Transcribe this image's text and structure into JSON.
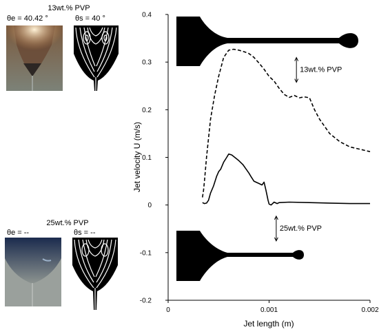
{
  "panels": {
    "top": {
      "title": "13wt.% PVP",
      "exp_angle": "θe = 40.42 °",
      "sim_angle": "θs = 40 °",
      "colors": {
        "photo_top": "#7b5a3e",
        "photo_glow": "#fff3d8",
        "photo_bottom": "#7c8278"
      }
    },
    "bottom": {
      "title": "25wt.% PVP",
      "exp_angle": "θe = --",
      "sim_angle": "θs = --",
      "colors": {
        "photo_top": "#1b2b4d",
        "photo_bottom": "#8d9490"
      }
    }
  },
  "chart_data": {
    "type": "line",
    "xlabel": "Jet length (m)",
    "ylabel": "Jet velocity U (m/s)",
    "xlim": [
      0,
      0.002
    ],
    "ylim": [
      -0.2,
      0.4
    ],
    "xticks": [
      0,
      0.001,
      0.002
    ],
    "xtick_labels": [
      "0",
      "0.001",
      "0.002"
    ],
    "yticks": [
      -0.2,
      -0.1,
      0,
      0.1,
      0.2,
      0.3,
      0.4
    ],
    "ytick_labels": [
      "-0.2",
      "-0.1",
      "0",
      "0.1",
      "0.2",
      "0.3",
      "0.4"
    ],
    "series": [
      {
        "name": "13wt.% PVP",
        "style": "dashed",
        "x": [
          0.00034,
          0.00035,
          0.00036,
          0.00038,
          0.00042,
          0.00046,
          0.0005,
          0.00055,
          0.0006,
          0.00065,
          0.0007,
          0.00075,
          0.0008,
          0.00085,
          0.0009,
          0.00095,
          0.001,
          0.00105,
          0.0011,
          0.00115,
          0.0012,
          0.00125,
          0.0013,
          0.00135,
          0.0014,
          0.00145,
          0.0015,
          0.0016,
          0.0017,
          0.0018,
          0.0019,
          0.002
        ],
        "y": [
          0.016,
          0.03,
          0.05,
          0.1,
          0.18,
          0.23,
          0.27,
          0.31,
          0.325,
          0.327,
          0.325,
          0.322,
          0.318,
          0.31,
          0.298,
          0.285,
          0.27,
          0.26,
          0.245,
          0.232,
          0.226,
          0.23,
          0.225,
          0.227,
          0.225,
          0.2,
          0.18,
          0.15,
          0.133,
          0.122,
          0.117,
          0.112
        ]
      },
      {
        "name": "25wt.% PVP",
        "style": "solid",
        "x": [
          0.00034,
          0.00036,
          0.00038,
          0.0004,
          0.00042,
          0.00045,
          0.00048,
          0.0005,
          0.00052,
          0.00055,
          0.00058,
          0.0006,
          0.00063,
          0.00066,
          0.0007,
          0.00074,
          0.00078,
          0.0008,
          0.00082,
          0.00085,
          0.0009,
          0.00093,
          0.00095,
          0.00097,
          0.00099,
          0.001,
          0.00102,
          0.00105,
          0.00108,
          0.0011,
          0.0012,
          0.0014,
          0.0016,
          0.0018,
          0.002
        ],
        "y": [
          0.005,
          0.003,
          0.004,
          0.01,
          0.025,
          0.04,
          0.06,
          0.07,
          0.075,
          0.09,
          0.1,
          0.107,
          0.105,
          0.1,
          0.093,
          0.085,
          0.073,
          0.067,
          0.06,
          0.05,
          0.045,
          0.042,
          0.048,
          0.03,
          0.01,
          0.002,
          0.0,
          0.006,
          0.003,
          0.005,
          0.006,
          0.005,
          0.004,
          0.003,
          0.003
        ]
      }
    ],
    "annotations": [
      {
        "text": "13wt.% PVP",
        "x": 0.00138,
        "y": 0.285
      },
      {
        "text": "25wt.% PVP",
        "x": 0.00118,
        "y": -0.048
      }
    ]
  }
}
